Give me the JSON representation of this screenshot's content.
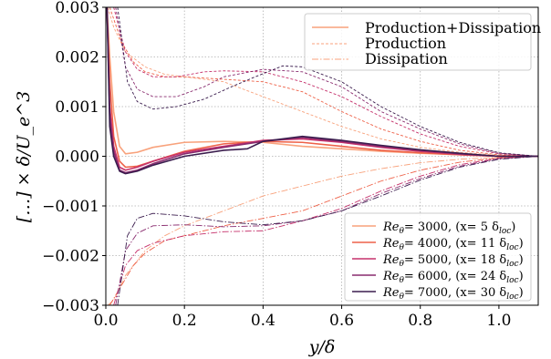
{
  "chart_data": {
    "type": "line",
    "xlabel": "y/δ",
    "ylabel": "[…] × δ/U_e^3",
    "xlim": [
      0.0,
      1.1
    ],
    "ylim": [
      -0.003,
      0.003
    ],
    "xticks": [
      0.0,
      0.2,
      0.4,
      0.6,
      0.8,
      1.0
    ],
    "xtick_labels": [
      "0.0",
      "0.2",
      "0.4",
      "0.6",
      "0.8",
      "1.0"
    ],
    "yticks": [
      -0.003,
      -0.002,
      -0.001,
      0.0,
      0.001,
      0.002,
      0.003
    ],
    "ytick_labels": [
      "−0.003",
      "−0.002",
      "−0.001",
      "0.000",
      "0.001",
      "0.002",
      "0.003"
    ],
    "grid": true,
    "style_legend": {
      "placement": "top-right",
      "entries": [
        {
          "label": "Production+Dissipation",
          "dash": "solid"
        },
        {
          "label": "Production",
          "dash": "dashed"
        },
        {
          "label": "Dissipation",
          "dash": "dashdot"
        }
      ]
    },
    "series_legend": {
      "placement": "bottom-right",
      "entries": [
        {
          "re": "Re",
          "sub": "θ",
          "text": "= 3000,   (x= 5 δ",
          "loc": "loc",
          "close": ")"
        },
        {
          "re": "Re",
          "sub": "θ",
          "text": "= 4000,   (x= 11 δ",
          "loc": "loc",
          "close": ")"
        },
        {
          "re": "Re",
          "sub": "θ",
          "text": "= 5000,   (x= 18 δ",
          "loc": "loc",
          "close": ")"
        },
        {
          "re": "Re",
          "sub": "θ",
          "text": "= 6000,   (x= 24 δ",
          "loc": "loc",
          "close": ")"
        },
        {
          "re": "Re",
          "sub": "θ",
          "text": "= 7000,   (x= 30 δ",
          "loc": "loc",
          "close": ")"
        }
      ]
    },
    "series": [
      {
        "color": "#f8a27c",
        "production": [
          [
            0.005,
            0.003
          ],
          [
            0.02,
            0.0026
          ],
          [
            0.05,
            0.0021
          ],
          [
            0.1,
            0.0018
          ],
          [
            0.15,
            0.00165
          ],
          [
            0.2,
            0.0016
          ],
          [
            0.3,
            0.0015
          ],
          [
            0.4,
            0.0012
          ],
          [
            0.5,
            0.0009
          ],
          [
            0.6,
            0.0006
          ],
          [
            0.7,
            0.00035
          ],
          [
            0.8,
            0.00018
          ],
          [
            0.9,
            8e-05
          ],
          [
            1.0,
            2e-05
          ],
          [
            1.1,
            0.0
          ]
        ],
        "dissipation": [
          [
            0.005,
            -0.003
          ],
          [
            0.02,
            -0.0029
          ],
          [
            0.05,
            -0.0024
          ],
          [
            0.08,
            -0.0021
          ],
          [
            0.1,
            -0.0019
          ],
          [
            0.15,
            -0.0016
          ],
          [
            0.2,
            -0.0014
          ],
          [
            0.3,
            -0.0011
          ],
          [
            0.4,
            -0.0008
          ],
          [
            0.5,
            -0.0006
          ],
          [
            0.6,
            -0.0004
          ],
          [
            0.7,
            -0.00025
          ],
          [
            0.8,
            -0.00013
          ],
          [
            0.9,
            -6e-05
          ],
          [
            1.0,
            -2e-05
          ],
          [
            1.1,
            0.0
          ]
        ],
        "sum": [
          [
            0.003,
            0.003
          ],
          [
            0.01,
            0.002
          ],
          [
            0.02,
            0.0009
          ],
          [
            0.035,
            0.0002
          ],
          [
            0.05,
            5e-05
          ],
          [
            0.08,
            8e-05
          ],
          [
            0.12,
            0.00018
          ],
          [
            0.2,
            0.00028
          ],
          [
            0.3,
            0.0003
          ],
          [
            0.4,
            0.00028
          ],
          [
            0.5,
            0.0002
          ],
          [
            0.6,
            0.00015
          ],
          [
            0.7,
            0.0001
          ],
          [
            0.8,
            6e-05
          ],
          [
            0.9,
            3e-05
          ],
          [
            1.0,
            0.0
          ],
          [
            1.1,
            0.0
          ]
        ]
      },
      {
        "color": "#ee6148",
        "production": [
          [
            0.01,
            0.003
          ],
          [
            0.04,
            0.0023
          ],
          [
            0.07,
            0.0019
          ],
          [
            0.1,
            0.0017
          ],
          [
            0.15,
            0.0016
          ],
          [
            0.2,
            0.0016
          ],
          [
            0.3,
            0.00155
          ],
          [
            0.4,
            0.0015
          ],
          [
            0.5,
            0.0013
          ],
          [
            0.6,
            0.0009
          ],
          [
            0.7,
            0.00055
          ],
          [
            0.8,
            0.0003
          ],
          [
            0.9,
            0.00012
          ],
          [
            1.0,
            3e-05
          ],
          [
            1.1,
            0.0
          ]
        ],
        "dissipation": [
          [
            0.01,
            -0.003
          ],
          [
            0.04,
            -0.0026
          ],
          [
            0.07,
            -0.0022
          ],
          [
            0.1,
            -0.00195
          ],
          [
            0.15,
            -0.0017
          ],
          [
            0.2,
            -0.0016
          ],
          [
            0.3,
            -0.0014
          ],
          [
            0.4,
            -0.00125
          ],
          [
            0.5,
            -0.0011
          ],
          [
            0.6,
            -0.0008
          ],
          [
            0.7,
            -0.0005
          ],
          [
            0.8,
            -0.00028
          ],
          [
            0.9,
            -0.00012
          ],
          [
            1.0,
            -3e-05
          ],
          [
            1.1,
            0.0
          ]
        ],
        "sum": [
          [
            0.003,
            0.003
          ],
          [
            0.01,
            0.0015
          ],
          [
            0.02,
            0.0004
          ],
          [
            0.035,
            -0.0001
          ],
          [
            0.05,
            -0.00022
          ],
          [
            0.08,
            -0.0002
          ],
          [
            0.12,
            -0.0001
          ],
          [
            0.2,
            0.0001
          ],
          [
            0.3,
            0.00025
          ],
          [
            0.4,
            0.0003
          ],
          [
            0.5,
            0.00028
          ],
          [
            0.6,
            0.0002
          ],
          [
            0.7,
            0.00012
          ],
          [
            0.8,
            7e-05
          ],
          [
            0.9,
            3e-05
          ],
          [
            1.0,
            0.0
          ],
          [
            1.1,
            0.0
          ]
        ]
      },
      {
        "color": "#c5316b",
        "production": [
          [
            0.02,
            0.003
          ],
          [
            0.05,
            0.0021
          ],
          [
            0.08,
            0.00175
          ],
          [
            0.12,
            0.0016
          ],
          [
            0.18,
            0.0016
          ],
          [
            0.25,
            0.0017
          ],
          [
            0.3,
            0.00172
          ],
          [
            0.4,
            0.0017
          ],
          [
            0.5,
            0.0015
          ],
          [
            0.6,
            0.0012
          ],
          [
            0.7,
            0.0008
          ],
          [
            0.8,
            0.00045
          ],
          [
            0.9,
            0.0002
          ],
          [
            1.0,
            5e-05
          ],
          [
            1.1,
            0.0
          ]
        ],
        "dissipation": [
          [
            0.02,
            -0.003
          ],
          [
            0.05,
            -0.0022
          ],
          [
            0.08,
            -0.0019
          ],
          [
            0.12,
            -0.00175
          ],
          [
            0.2,
            -0.0016
          ],
          [
            0.3,
            -0.00152
          ],
          [
            0.4,
            -0.0015
          ],
          [
            0.5,
            -0.0013
          ],
          [
            0.6,
            -0.00105
          ],
          [
            0.7,
            -0.0007
          ],
          [
            0.8,
            -0.0004
          ],
          [
            0.9,
            -0.00017
          ],
          [
            1.0,
            -4e-05
          ],
          [
            1.1,
            0.0
          ]
        ],
        "sum": [
          [
            0.003,
            0.003
          ],
          [
            0.01,
            0.001
          ],
          [
            0.02,
            0.0002
          ],
          [
            0.035,
            -0.00022
          ],
          [
            0.05,
            -0.00028
          ],
          [
            0.08,
            -0.00022
          ],
          [
            0.12,
            -0.0001
          ],
          [
            0.2,
            8e-05
          ],
          [
            0.3,
            0.0002
          ],
          [
            0.4,
            0.00032
          ],
          [
            0.5,
            0.00035
          ],
          [
            0.6,
            0.00028
          ],
          [
            0.7,
            0.00018
          ],
          [
            0.8,
            0.0001
          ],
          [
            0.9,
            4e-05
          ],
          [
            1.0,
            0.0
          ],
          [
            1.1,
            0.0
          ]
        ]
      },
      {
        "color": "#892b6e",
        "production": [
          [
            0.025,
            0.003
          ],
          [
            0.05,
            0.0018
          ],
          [
            0.08,
            0.00135
          ],
          [
            0.12,
            0.0012
          ],
          [
            0.18,
            0.0012
          ],
          [
            0.25,
            0.0014
          ],
          [
            0.3,
            0.0016
          ],
          [
            0.4,
            0.00175
          ],
          [
            0.5,
            0.0017
          ],
          [
            0.6,
            0.0014
          ],
          [
            0.7,
            0.0009
          ],
          [
            0.8,
            0.00055
          ],
          [
            0.9,
            0.00025
          ],
          [
            1.0,
            6e-05
          ],
          [
            1.1,
            0.0
          ]
        ],
        "dissipation": [
          [
            0.025,
            -0.003
          ],
          [
            0.05,
            -0.0019
          ],
          [
            0.08,
            -0.00155
          ],
          [
            0.12,
            -0.0014
          ],
          [
            0.2,
            -0.00138
          ],
          [
            0.3,
            -0.00142
          ],
          [
            0.4,
            -0.0014
          ],
          [
            0.5,
            -0.0013
          ],
          [
            0.6,
            -0.0011
          ],
          [
            0.7,
            -0.00075
          ],
          [
            0.8,
            -0.00045
          ],
          [
            0.9,
            -0.0002
          ],
          [
            1.0,
            -5e-05
          ],
          [
            1.1,
            0.0
          ]
        ],
        "sum": [
          [
            0.003,
            0.003
          ],
          [
            0.01,
            0.0008
          ],
          [
            0.02,
            0.0001
          ],
          [
            0.035,
            -0.00028
          ],
          [
            0.05,
            -0.00033
          ],
          [
            0.08,
            -0.00028
          ],
          [
            0.12,
            -0.00015
          ],
          [
            0.2,
            5e-05
          ],
          [
            0.3,
            0.00018
          ],
          [
            0.4,
            0.0003
          ],
          [
            0.5,
            0.00038
          ],
          [
            0.6,
            0.0003
          ],
          [
            0.7,
            0.0002
          ],
          [
            0.8,
            0.00012
          ],
          [
            0.9,
            5e-05
          ],
          [
            1.0,
            0.0
          ],
          [
            1.1,
            0.0
          ]
        ]
      },
      {
        "color": "#3b1d4e",
        "production": [
          [
            0.03,
            0.003
          ],
          [
            0.055,
            0.0015
          ],
          [
            0.08,
            0.0011
          ],
          [
            0.12,
            0.00095
          ],
          [
            0.18,
            0.001
          ],
          [
            0.25,
            0.00115
          ],
          [
            0.32,
            0.0014
          ],
          [
            0.38,
            0.0016
          ],
          [
            0.45,
            0.00182
          ],
          [
            0.5,
            0.0018
          ],
          [
            0.6,
            0.0015
          ],
          [
            0.7,
            0.001
          ],
          [
            0.8,
            0.0006
          ],
          [
            0.9,
            0.00028
          ],
          [
            1.0,
            7e-05
          ],
          [
            1.1,
            0.0
          ]
        ],
        "dissipation": [
          [
            0.03,
            -0.003
          ],
          [
            0.055,
            -0.0016
          ],
          [
            0.08,
            -0.00125
          ],
          [
            0.12,
            -0.00115
          ],
          [
            0.2,
            -0.0012
          ],
          [
            0.3,
            -0.00132
          ],
          [
            0.4,
            -0.00138
          ],
          [
            0.5,
            -0.0013
          ],
          [
            0.6,
            -0.0011
          ],
          [
            0.7,
            -0.0008
          ],
          [
            0.8,
            -0.00048
          ],
          [
            0.9,
            -0.00022
          ],
          [
            1.0,
            -6e-05
          ],
          [
            1.1,
            0.0
          ]
        ],
        "sum": [
          [
            0.003,
            0.003
          ],
          [
            0.01,
            0.0006
          ],
          [
            0.02,
            0.0
          ],
          [
            0.035,
            -0.0003
          ],
          [
            0.05,
            -0.00035
          ],
          [
            0.08,
            -0.0003
          ],
          [
            0.12,
            -0.00018
          ],
          [
            0.2,
            0.0
          ],
          [
            0.3,
            0.00012
          ],
          [
            0.36,
            0.00015
          ],
          [
            0.4,
            0.0003
          ],
          [
            0.5,
            0.0004
          ],
          [
            0.6,
            0.00032
          ],
          [
            0.7,
            0.00022
          ],
          [
            0.8,
            0.00013
          ],
          [
            0.9,
            6e-05
          ],
          [
            1.0,
            0.0
          ],
          [
            1.1,
            0.0
          ]
        ]
      }
    ]
  }
}
